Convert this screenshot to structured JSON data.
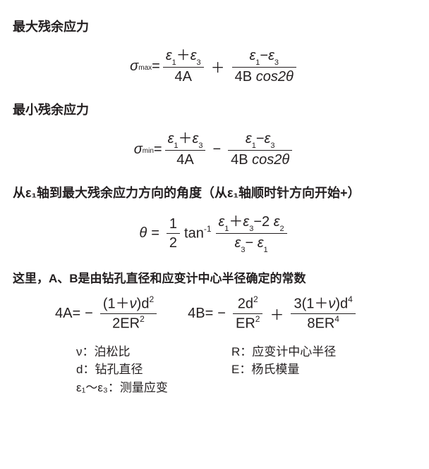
{
  "colors": {
    "text": "#231f20",
    "bg": "#ffffff"
  },
  "heading_max": "最大残余应力",
  "heading_min": "最小残余应力",
  "heading_angle": "从ε₁轴到最大残余应力方向的角度（从ε₁轴顺时针方向开始+）",
  "notes_AB": "这里，A、B是由钻孔直径和应变计中心半径确定的常数",
  "sym": {
    "sigma": "σ",
    "eps": "ε",
    "theta": "θ",
    "nu": "ν",
    "tan_inv": "tan",
    "cos2t": "cos2",
    "plus": "＋",
    "minus": "−",
    "eq": "=",
    "one": "1",
    "two": "2",
    "three": "3",
    "fourA": "4A",
    "fourB": "4B",
    "d": "d",
    "R": "R",
    "E": "E",
    "eight": "8",
    "max": "max",
    "min": "min",
    "inv": "-1",
    "sq": "2",
    "p4": "4"
  },
  "defs": {
    "nu": "ν：泊松比",
    "R": "R：应变计中心半径",
    "d": "d：钻孔直径",
    "E": "E：杨氏模量",
    "eps": "ε₁～ε₃：测量应变"
  }
}
